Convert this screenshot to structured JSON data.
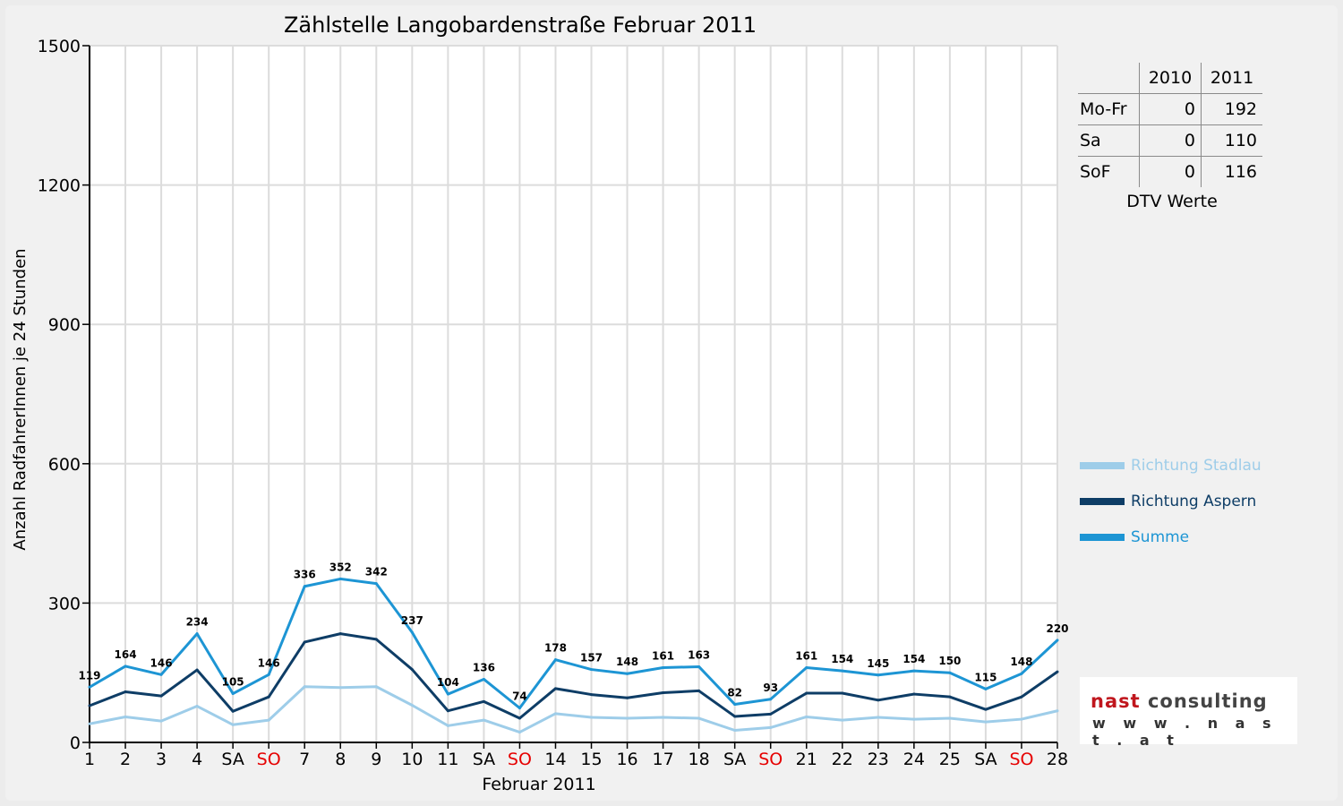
{
  "chart_data": {
    "type": "line",
    "title": "Zählstelle Langobardenstraße Februar 2011",
    "xlabel": "Februar 2011",
    "ylabel": "Anzahl RadfahrerInnen je 24 Stunden",
    "ylim": [
      0,
      1500
    ],
    "yticks": [
      0,
      300,
      600,
      900,
      1200,
      1500
    ],
    "categories": [
      "1",
      "2",
      "3",
      "4",
      "SA",
      "SO",
      "7",
      "8",
      "9",
      "10",
      "11",
      "SA",
      "SO",
      "14",
      "15",
      "16",
      "17",
      "18",
      "SA",
      "SO",
      "21",
      "22",
      "23",
      "24",
      "25",
      "SA",
      "SO",
      "28"
    ],
    "category_colors": [
      "#000",
      "#000",
      "#000",
      "#000",
      "#000",
      "#e60000",
      "#000",
      "#000",
      "#000",
      "#000",
      "#000",
      "#000",
      "#e60000",
      "#000",
      "#000",
      "#000",
      "#000",
      "#000",
      "#000",
      "#e60000",
      "#000",
      "#000",
      "#000",
      "#000",
      "#000",
      "#000",
      "#e60000",
      "#000"
    ],
    "series": [
      {
        "name": "Richtung Stadlau",
        "color": "#9ecde9",
        "values": [
          40,
          55,
          46,
          78,
          38,
          48,
          120,
          118,
          120,
          80,
          36,
          48,
          22,
          62,
          54,
          52,
          54,
          52,
          26,
          32,
          55,
          48,
          54,
          50,
          52,
          44,
          50,
          68
        ]
      },
      {
        "name": "Richtung Aspern",
        "color": "#0e3d66",
        "values": [
          79,
          109,
          100,
          156,
          67,
          98,
          216,
          234,
          222,
          157,
          68,
          88,
          52,
          116,
          103,
          96,
          107,
          111,
          56,
          61,
          106,
          106,
          91,
          104,
          98,
          71,
          98,
          152
        ]
      },
      {
        "name": "Summe",
        "color": "#1d95d4",
        "labeled": true,
        "values": [
          119,
          164,
          146,
          234,
          105,
          146,
          336,
          352,
          342,
          237,
          104,
          136,
          74,
          178,
          157,
          148,
          161,
          163,
          82,
          93,
          161,
          154,
          145,
          154,
          150,
          115,
          148,
          220
        ]
      }
    ],
    "grid": true,
    "legend_position": "right"
  },
  "dtv": {
    "columns": [
      "2010",
      "2011"
    ],
    "rows": [
      {
        "label": "Mo-Fr",
        "v2010": "0",
        "v2011": "192"
      },
      {
        "label": "Sa",
        "v2010": "0",
        "v2011": "110"
      },
      {
        "label": "SoF",
        "v2010": "0",
        "v2011": "116"
      }
    ],
    "caption": "DTV Werte"
  },
  "logo": {
    "brand_a": "nast",
    "brand_b": "consulting",
    "url": "w w w . n a s t . a t"
  }
}
